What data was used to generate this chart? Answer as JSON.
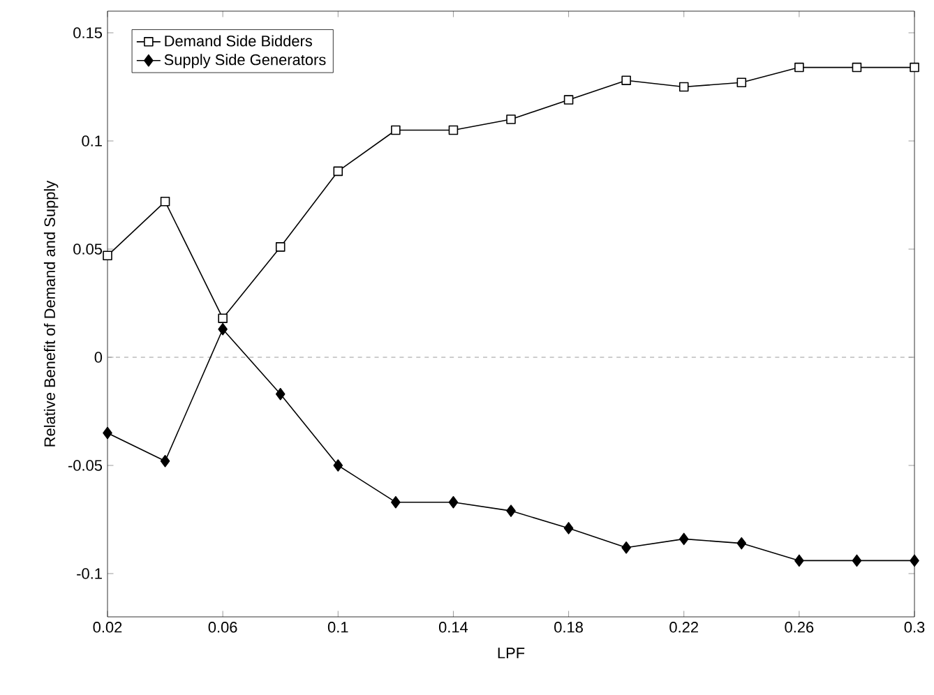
{
  "chart_data": {
    "type": "line",
    "xlabel": "LPF",
    "ylabel": "Relative Benefit of Demand and Supply",
    "x": [
      0.02,
      0.04,
      0.06,
      0.08,
      0.1,
      0.12,
      0.14,
      0.16,
      0.18,
      0.2,
      0.22,
      0.24,
      0.26,
      0.28,
      0.3
    ],
    "series": [
      {
        "name": "Demand Side Bidders",
        "color": "#000000",
        "marker": "square",
        "values": [
          0.047,
          0.072,
          0.018,
          0.051,
          0.086,
          0.105,
          0.105,
          0.11,
          0.119,
          0.128,
          0.125,
          0.127,
          0.134,
          0.134,
          0.134
        ]
      },
      {
        "name": "Supply Side Generators",
        "color": "#000000",
        "marker": "diamond",
        "values": [
          -0.035,
          -0.048,
          0.013,
          -0.017,
          -0.05,
          -0.067,
          -0.067,
          -0.071,
          -0.079,
          -0.088,
          -0.084,
          -0.086,
          -0.094,
          -0.094,
          -0.094
        ]
      }
    ],
    "xlim": [
      0.02,
      0.3
    ],
    "ylim": [
      -0.12,
      0.16
    ],
    "xticks": [
      0.02,
      0.06,
      0.1,
      0.14,
      0.18,
      0.22,
      0.26,
      0.3
    ],
    "yticks": [
      -0.1,
      -0.05,
      0,
      0.05,
      0.1,
      0.15
    ],
    "ref_lines": [
      {
        "axis": "y",
        "value": 0,
        "color": "#999999",
        "line_style": "dashed"
      }
    ],
    "grid": false,
    "legend": "top left",
    "line_style": "solid"
  }
}
